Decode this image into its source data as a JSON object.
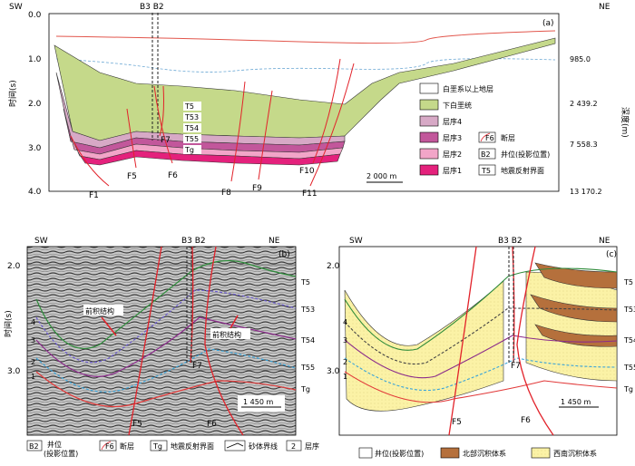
{
  "panel_a": {
    "tag": "(a)",
    "sw": "SW",
    "ne": "NE",
    "wells": "B3 B2",
    "y_axis_label": "时间(s)",
    "y_ticks": [
      "0.0",
      "1.0",
      "2.0",
      "3.0",
      "4.0"
    ],
    "depth_label": "深度(m)",
    "depth_ticks": [
      "985.0",
      "2 439.2",
      "7 558.3",
      "13 170.2"
    ],
    "faults": [
      "F1",
      "F5",
      "F6",
      "F7",
      "F8",
      "F9",
      "F10",
      "F11"
    ],
    "horizons": [
      "T5",
      "T53",
      "T54",
      "T55",
      "Tg"
    ],
    "scale": "2 000 m",
    "legend": [
      {
        "label": "白垩系以上地层",
        "color": "#ffffff"
      },
      {
        "label": "下白垩统",
        "color": "#c5d98a"
      },
      {
        "label": "层序4",
        "color": "#d7a9c6"
      },
      {
        "label": "层序3",
        "color": "#c2579b"
      },
      {
        "label": "层序2",
        "color": "#f2a5c8"
      },
      {
        "label": "层序1",
        "color": "#e4217c"
      }
    ],
    "legend_right": [
      {
        "label": "断层",
        "tag": "F6"
      },
      {
        "label": "井位(投影位置)",
        "tag": "B2"
      },
      {
        "label": "地震反射界面",
        "tag": "T5"
      }
    ]
  },
  "panel_b": {
    "tag": "(b)",
    "sw": "SW",
    "ne": "NE",
    "wells": "B3 B2",
    "y_axis_label": "时间(s)",
    "y_ticks": [
      "2.0",
      "3.0"
    ],
    "horizons": [
      "T5",
      "T53",
      "T54",
      "T55",
      "Tg"
    ],
    "seq_numbers": [
      "4",
      "3",
      "2",
      "1"
    ],
    "annot1": "前积结构",
    "annot2": "前积结构",
    "faults": [
      "F5",
      "F6",
      "F7"
    ],
    "scale": "1 450 m"
  },
  "panel_c": {
    "tag": "(c)",
    "sw": "SW",
    "ne": "NE",
    "wells": "B3 B2",
    "y_ticks": [
      "2.0",
      "3.0"
    ],
    "horizons": [
      "T5",
      "T53",
      "T54",
      "T55",
      "Tg"
    ],
    "seq_numbers": [
      "4",
      "3",
      "2",
      "1"
    ],
    "faults": [
      "F5",
      "F6",
      "F7"
    ],
    "scale": "1 450 m"
  },
  "bottom_legend": {
    "well_tag": "B2",
    "well": "井位\n(投影位置)",
    "well_line1": "井位",
    "well_line2": "(投影位置)",
    "fault_tag": "F6",
    "fault": "断层",
    "horizon_tag": "Tg",
    "horizon": "地震反射界面",
    "sand": "砂体界线",
    "seq_tag": "2",
    "seq": "层序",
    "well2": "井位(投影位置)",
    "north": "北部沉积体系",
    "southwest": "西南沉积体系",
    "north_color": "#b5703c",
    "southwest_color": "#fbf2a6"
  }
}
